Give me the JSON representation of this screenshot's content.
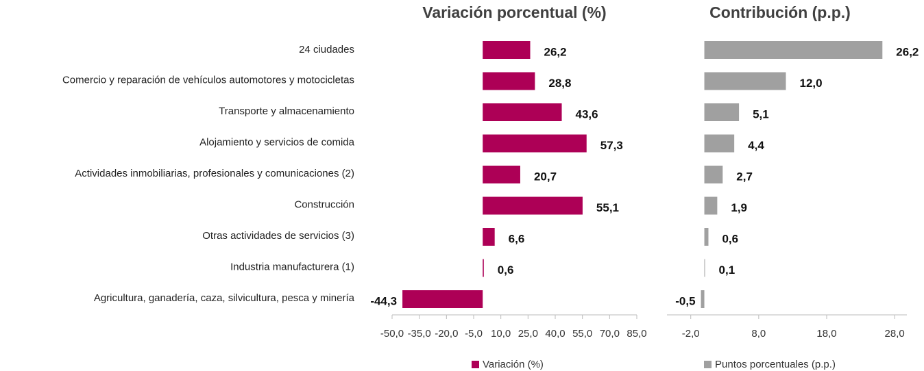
{
  "chart_data": [
    {
      "type": "bar",
      "orientation": "horizontal",
      "title": "Variación porcentual (%)",
      "categories": [
        "24 ciudades",
        "Comercio y reparación de vehículos automotores y motocicletas",
        "Transporte y almacenamiento",
        "Alojamiento y servicios de comida",
        "Actividades inmobiliarias, profesionales y comunicaciones (2)",
        "Construcción",
        "Otras actividades de servicios (3)",
        "Industria manufacturera (1)",
        "Agricultura, ganadería, caza, silvicultura, pesca y minería"
      ],
      "series": [
        {
          "name": "Variación (%)",
          "color": "#ad0056",
          "values": [
            26.2,
            28.8,
            43.6,
            57.3,
            20.7,
            55.1,
            6.6,
            0.6,
            -44.3
          ],
          "value_labels": [
            "26,2",
            "28,8",
            "43,6",
            "57,3",
            "20,7",
            "55,1",
            "6,6",
            "0,6",
            "-44,3"
          ]
        }
      ],
      "xlim": [
        -50,
        85
      ],
      "xticks": [
        {
          "value": -50,
          "label": "-50,0"
        },
        {
          "value": -35,
          "label": "-35,0"
        },
        {
          "value": -20,
          "label": "-20,0"
        },
        {
          "value": -5,
          "label": "-5,0"
        },
        {
          "value": 10,
          "label": "10,0"
        },
        {
          "value": 25,
          "label": "25,0"
        },
        {
          "value": 40,
          "label": "40,0"
        },
        {
          "value": 55,
          "label": "55,0"
        },
        {
          "value": 70,
          "label": "70,0"
        },
        {
          "value": 85,
          "label": "85,0"
        }
      ],
      "legend": "bottom"
    },
    {
      "type": "bar",
      "orientation": "horizontal",
      "title": "Contribución (p.p.)",
      "series": [
        {
          "name": "Puntos porcentuales (p.p.)",
          "color": "#a0a0a0",
          "values": [
            26.2,
            12.0,
            5.1,
            4.4,
            2.7,
            1.9,
            0.6,
            0.1,
            -0.5
          ],
          "value_labels": [
            "26,2",
            "12,0",
            "5,1",
            "4,4",
            "2,7",
            "1,9",
            "0,6",
            "0,1",
            "-0,5"
          ]
        }
      ],
      "xlim": [
        -5.5,
        29.8
      ],
      "xticks": [
        {
          "value": -2,
          "label": "-2,0"
        },
        {
          "value": 8,
          "label": "8,0"
        },
        {
          "value": 18,
          "label": "18,0"
        },
        {
          "value": 28,
          "label": "28,0"
        }
      ],
      "legend": "bottom"
    }
  ]
}
